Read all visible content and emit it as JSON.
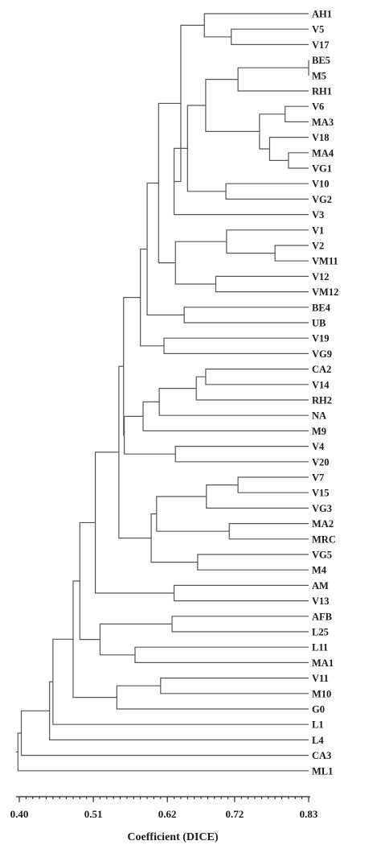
{
  "chart_data": {
    "type": "dendrogram",
    "title": "",
    "xlabel": "Coefficient (DICE)",
    "ylabel": "",
    "xlim": [
      0.4,
      0.83
    ],
    "ticks": [
      {
        "value": 0.4,
        "label": "0.40"
      },
      {
        "value": 0.51,
        "label": "0.51"
      },
      {
        "value": 0.62,
        "label": "0.62"
      },
      {
        "value": 0.72,
        "label": "0.72"
      },
      {
        "value": 0.83,
        "label": "0.83"
      }
    ],
    "leaves": [
      "AH1",
      "V5",
      "V17",
      "BE5",
      "M5",
      "RH1",
      "V6",
      "MA3",
      "V18",
      "MA4",
      "VG1",
      "V10",
      "VG2",
      "V3",
      "V1",
      "V2",
      "VM11",
      "V12",
      "VM12",
      "BE4",
      "UB",
      "V19",
      "VG9",
      "CA2",
      "V14",
      "RH2",
      "NA",
      "M9",
      "V4",
      "V20",
      "V7",
      "V15",
      "VG3",
      "MA2",
      "MRC",
      "VG5",
      "M4",
      "AM",
      "V13",
      "AFB",
      "L25",
      "L11",
      "MA1",
      "V11",
      "M10",
      "G0",
      "L1",
      "L4",
      "CA3",
      "ML1"
    ],
    "merges": [
      {
        "id": "c1",
        "a": "V5",
        "b": "V17",
        "sim": 0.715
      },
      {
        "id": "c2",
        "a": "AH1",
        "b": "c1",
        "sim": 0.675
      },
      {
        "id": "c3",
        "a": "BE5",
        "b": "M5",
        "sim": 0.83
      },
      {
        "id": "c4",
        "a": "c3",
        "b": "RH1",
        "sim": 0.725
      },
      {
        "id": "c5",
        "a": "V6",
        "b": "MA3",
        "sim": 0.795
      },
      {
        "id": "c6",
        "a": "MA4",
        "b": "VG1",
        "sim": 0.8
      },
      {
        "id": "c7",
        "a": "V18",
        "b": "c6",
        "sim": 0.772
      },
      {
        "id": "c8",
        "a": "c5",
        "b": "c7",
        "sim": 0.757
      },
      {
        "id": "c9",
        "a": "c4",
        "b": "c8",
        "sim": 0.677
      },
      {
        "id": "c10",
        "a": "V10",
        "b": "VG2",
        "sim": 0.707
      },
      {
        "id": "c11",
        "a": "c9",
        "b": "c10",
        "sim": 0.65
      },
      {
        "id": "c12",
        "a": "c11",
        "b": "V3",
        "sim": 0.63
      },
      {
        "id": "c13",
        "a": "c2",
        "b": "c12",
        "sim": 0.64
      },
      {
        "id": "c14",
        "a": "V2",
        "b": "VM11",
        "sim": 0.78
      },
      {
        "id": "c15",
        "a": "V1",
        "b": "c14",
        "sim": 0.708
      },
      {
        "id": "c16",
        "a": "V12",
        "b": "VM12",
        "sim": 0.692
      },
      {
        "id": "c17",
        "a": "c15",
        "b": "c16",
        "sim": 0.632
      },
      {
        "id": "c18",
        "a": "c13",
        "b": "c17",
        "sim": 0.607
      },
      {
        "id": "c19",
        "a": "BE4",
        "b": "UB",
        "sim": 0.645
      },
      {
        "id": "c20",
        "a": "c18",
        "b": "c19",
        "sim": 0.59
      },
      {
        "id": "c21",
        "a": "V19",
        "b": "VG9",
        "sim": 0.615
      },
      {
        "id": "c22",
        "a": "c20",
        "b": "c21",
        "sim": 0.58
      },
      {
        "id": "c23",
        "a": "CA2",
        "b": "V14",
        "sim": 0.677
      },
      {
        "id": "c24",
        "a": "c23",
        "b": "RH2",
        "sim": 0.663
      },
      {
        "id": "c25",
        "a": "c24",
        "b": "NA",
        "sim": 0.608
      },
      {
        "id": "c26",
        "a": "c25",
        "b": "M9",
        "sim": 0.584
      },
      {
        "id": "c27",
        "a": "V4",
        "b": "V20",
        "sim": 0.632
      },
      {
        "id": "c28",
        "a": "c26",
        "b": "c27",
        "sim": 0.556
      },
      {
        "id": "c29",
        "a": "c22",
        "b": "c28",
        "sim": 0.555
      },
      {
        "id": "c30",
        "a": "V7",
        "b": "V15",
        "sim": 0.725
      },
      {
        "id": "c31",
        "a": "c30",
        "b": "VG3",
        "sim": 0.678
      },
      {
        "id": "c32",
        "a": "MA2",
        "b": "MRC",
        "sim": 0.712
      },
      {
        "id": "c33",
        "a": "c31",
        "b": "c32",
        "sim": 0.604
      },
      {
        "id": "c34",
        "a": "VG5",
        "b": "M4",
        "sim": 0.665
      },
      {
        "id": "c35",
        "a": "c33",
        "b": "c34",
        "sim": 0.596
      },
      {
        "id": "c36",
        "a": "c29",
        "b": "c35",
        "sim": 0.548
      },
      {
        "id": "c37",
        "a": "AM",
        "b": "V13",
        "sim": 0.63
      },
      {
        "id": "c38",
        "a": "c36",
        "b": "c37",
        "sim": 0.513
      },
      {
        "id": "c39",
        "a": "AFB",
        "b": "L25",
        "sim": 0.627
      },
      {
        "id": "c40",
        "a": "L11",
        "b": "MA1",
        "sim": 0.572
      },
      {
        "id": "c41",
        "a": "c39",
        "b": "c40",
        "sim": 0.52
      },
      {
        "id": "c42",
        "a": "c38",
        "b": "c41",
        "sim": 0.49
      },
      {
        "id": "c43",
        "a": "V11",
        "b": "M10",
        "sim": 0.61
      },
      {
        "id": "c44",
        "a": "c43",
        "b": "G0",
        "sim": 0.545
      },
      {
        "id": "c45",
        "a": "c42",
        "b": "c44",
        "sim": 0.48
      },
      {
        "id": "c46",
        "a": "c45",
        "b": "L1",
        "sim": 0.45
      },
      {
        "id": "c47",
        "a": "c46",
        "b": "L4",
        "sim": 0.445
      },
      {
        "id": "c48",
        "a": "c47",
        "b": "CA3",
        "sim": 0.403
      },
      {
        "id": "c49",
        "a": "c48",
        "b": "ML1",
        "sim": 0.398
      }
    ]
  }
}
